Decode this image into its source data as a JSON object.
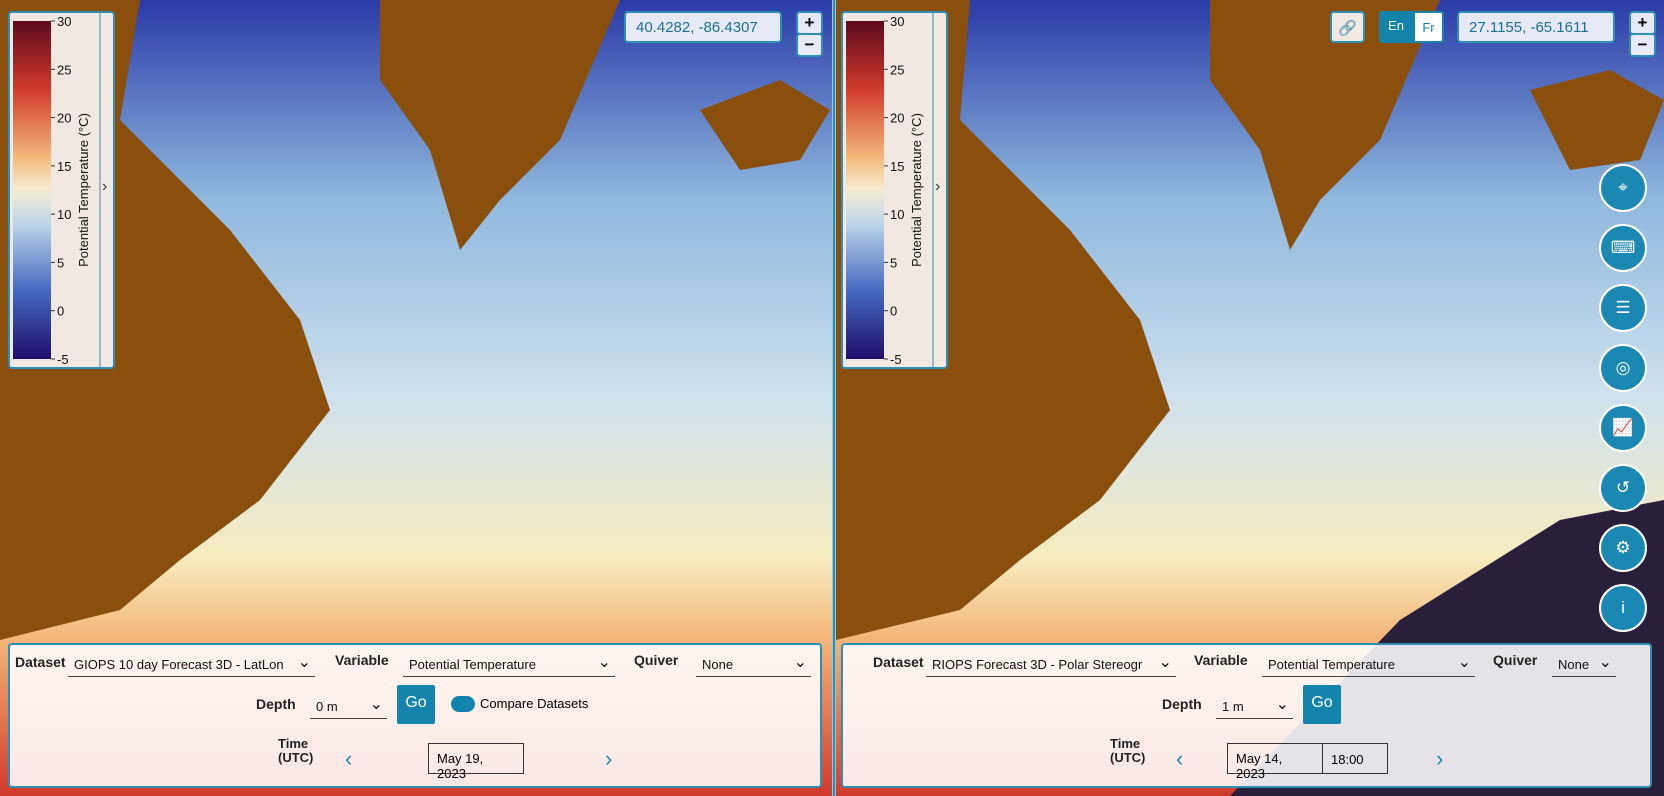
{
  "panels": [
    {
      "coordinates": "40.4282, -86.4307",
      "zoom_in": "+",
      "zoom_out": "−",
      "colorbar": {
        "title": "Potential Temperature (°C)",
        "ticks": [
          30,
          25,
          20,
          15,
          10,
          5,
          0,
          -5
        ]
      },
      "controls": {
        "dataset_label": "Dataset",
        "dataset": "GIOPS 10 day Forecast 3D - LatLon",
        "variable_label": "Variable",
        "variable": "Potential Temperature",
        "quiver_label": "Quiver",
        "quiver": "None",
        "depth_label": "Depth",
        "depth": "0 m",
        "go": "Go",
        "compare": "Compare Datasets",
        "time_label": "Time (UTC)",
        "date": "May 19, 2023"
      }
    },
    {
      "coordinates": "27.1155, -65.1611",
      "zoom_in": "+",
      "zoom_out": "−",
      "lang_en": "En",
      "lang_fr": "Fr",
      "colorbar": {
        "title": "Potential Temperature (°C)",
        "ticks": [
          30,
          25,
          20,
          15,
          10,
          5,
          0,
          -5
        ]
      },
      "controls": {
        "dataset_label": "Dataset",
        "dataset": "RIOPS Forecast 3D - Polar Stereogr",
        "variable_label": "Variable",
        "variable": "Potential Temperature",
        "quiver_label": "Quiver",
        "quiver": "None",
        "depth_label": "Depth",
        "depth": "1 m",
        "go": "Go",
        "time_label": "Time (UTC)",
        "date": "May 14, 2023",
        "time": "18:00"
      }
    }
  ]
}
